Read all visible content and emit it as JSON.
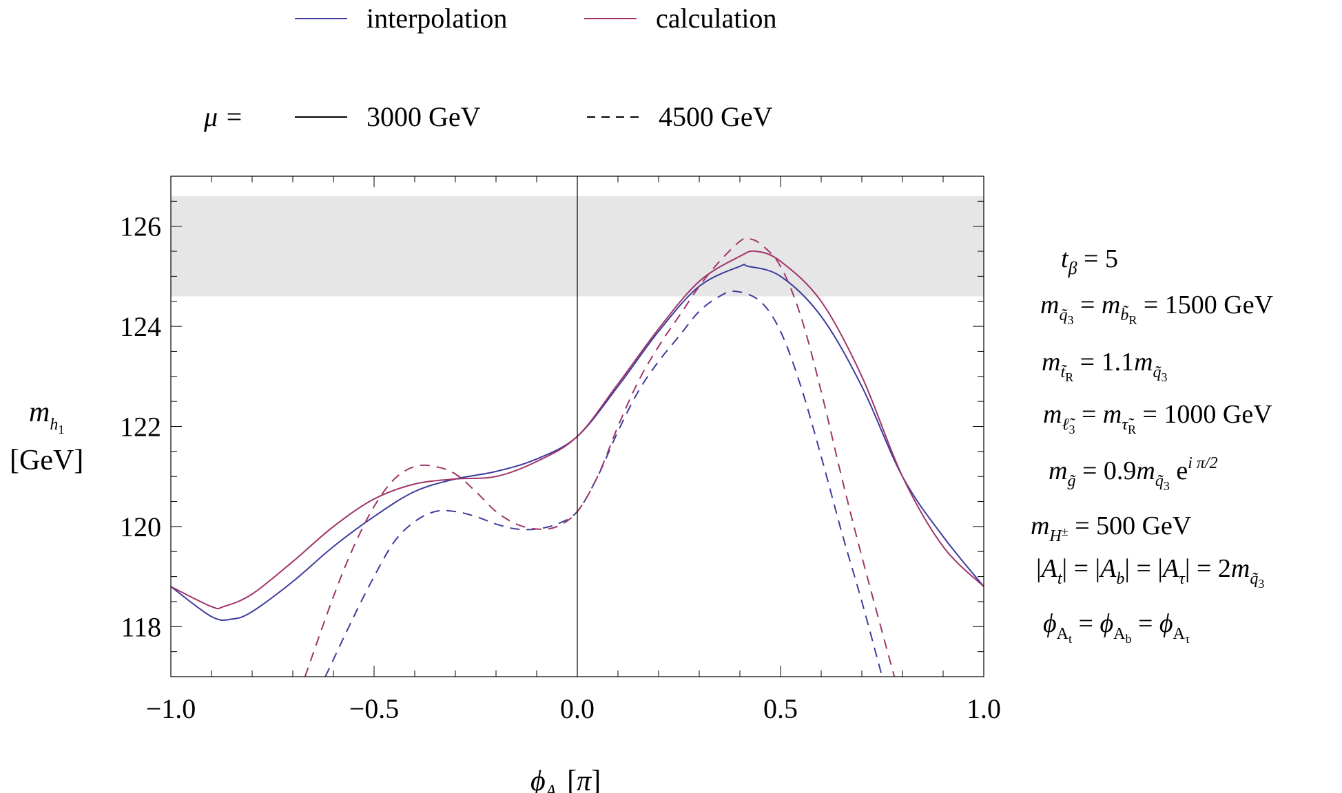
{
  "chart_data": {
    "type": "line",
    "xlabel": "ϕAₜ [π]",
    "ylabel": "mh₁ [GeV]",
    "xlim": [
      -1.0,
      1.0
    ],
    "ylim": [
      117,
      127
    ],
    "x_ticks": [
      "−1.0",
      "−0.5",
      "0.0",
      "0.5",
      "1.0"
    ],
    "y_ticks": [
      "118",
      "120",
      "122",
      "124",
      "126"
    ],
    "y_tick_values": [
      118,
      120,
      122,
      124,
      126
    ],
    "x_tick_values": [
      -1.0,
      -0.5,
      0.0,
      0.5,
      1.0
    ],
    "band": {
      "y_min": 124.6,
      "y_max": 126.6,
      "color": "#e6e6e6"
    },
    "legend_colors": [
      {
        "label": "interpolation",
        "color": "#3b3b9e"
      },
      {
        "label": "calculation",
        "color": "#a0336a"
      }
    ],
    "legend_styles": {
      "prefix": "μ =",
      "items": [
        {
          "label": "3000 GeV",
          "dash": "solid"
        },
        {
          "label": "4500 GeV",
          "dash": "dashed"
        }
      ]
    },
    "series": [
      {
        "color": "#3b3b9e",
        "dash": "solid",
        "x": [
          -1.0,
          -0.9,
          -0.85,
          -0.8,
          -0.7,
          -0.6,
          -0.5,
          -0.4,
          -0.3,
          -0.2,
          -0.1,
          0.0,
          0.1,
          0.2,
          0.3,
          0.4,
          0.42,
          0.5,
          0.6,
          0.7,
          0.8,
          0.9,
          1.0
        ],
        "y": [
          118.8,
          118.2,
          118.15,
          118.3,
          118.9,
          119.6,
          120.2,
          120.7,
          120.95,
          121.1,
          121.35,
          121.8,
          122.8,
          123.9,
          124.8,
          125.2,
          125.2,
          125.0,
          124.2,
          122.8,
          121.0,
          119.8,
          118.8
        ]
      },
      {
        "color": "#a0336a",
        "dash": "solid",
        "x": [
          -1.0,
          -0.9,
          -0.87,
          -0.8,
          -0.7,
          -0.6,
          -0.5,
          -0.4,
          -0.3,
          -0.2,
          -0.1,
          0.0,
          0.1,
          0.2,
          0.3,
          0.4,
          0.44,
          0.5,
          0.6,
          0.7,
          0.8,
          0.9,
          1.0
        ],
        "y": [
          118.8,
          118.4,
          118.4,
          118.65,
          119.3,
          120.0,
          120.55,
          120.85,
          120.95,
          121.0,
          121.3,
          121.8,
          122.85,
          123.95,
          124.9,
          125.4,
          125.5,
          125.3,
          124.5,
          123.0,
          121.0,
          119.6,
          118.8
        ]
      },
      {
        "color": "#3b3b9e",
        "dash": "dashed",
        "x": [
          -0.62,
          -0.55,
          -0.5,
          -0.45,
          -0.4,
          -0.35,
          -0.3,
          -0.25,
          -0.2,
          -0.15,
          -0.1,
          -0.05,
          0.0,
          0.05,
          0.1,
          0.15,
          0.2,
          0.25,
          0.3,
          0.35,
          0.39,
          0.45,
          0.5,
          0.55,
          0.6,
          0.65,
          0.7,
          0.75
        ],
        "y": [
          117.0,
          118.2,
          119.0,
          119.7,
          120.1,
          120.3,
          120.3,
          120.2,
          120.05,
          119.95,
          119.95,
          120.05,
          120.3,
          121.0,
          121.9,
          122.7,
          123.3,
          123.8,
          124.3,
          124.6,
          124.7,
          124.5,
          123.9,
          122.8,
          121.4,
          119.9,
          118.5,
          117.0
        ]
      },
      {
        "color": "#a0336a",
        "dash": "dashed",
        "x": [
          -0.67,
          -0.6,
          -0.55,
          -0.5,
          -0.45,
          -0.4,
          -0.35,
          -0.3,
          -0.25,
          -0.2,
          -0.15,
          -0.1,
          -0.05,
          0.0,
          0.05,
          0.1,
          0.15,
          0.2,
          0.25,
          0.3,
          0.35,
          0.4,
          0.42,
          0.45,
          0.5,
          0.55,
          0.6,
          0.65,
          0.7,
          0.78
        ],
        "y": [
          117.0,
          118.6,
          119.6,
          120.4,
          120.95,
          121.2,
          121.2,
          121.05,
          120.7,
          120.3,
          120.05,
          119.95,
          120.0,
          120.3,
          121.0,
          122.0,
          122.9,
          123.6,
          124.2,
          124.8,
          125.3,
          125.7,
          125.75,
          125.65,
          125.2,
          124.2,
          122.7,
          121.0,
          119.4,
          117.0
        ]
      }
    ]
  },
  "params": [
    {
      "main": "t",
      "sub": "β",
      "rest": " = 5"
    },
    {
      "main": "m",
      "sub": "q̃₃",
      "mid": " = m",
      "sub2": "b̃R",
      "rest": " = 1500 GeV"
    },
    {
      "main": "m",
      "sub": "t̃R",
      "mid": " = 1.1m",
      "sub2": "q̃₃",
      "rest": ""
    },
    {
      "main": "m",
      "sub": "ℓ̃₃",
      "mid": " = m",
      "sub2": "τ̃R",
      "rest": " = 1000 GeV"
    },
    {
      "main": "m",
      "sub": "g̃",
      "mid": " = 0.9m",
      "sub2": "q̃₃",
      "rest": " e",
      "sup": "i π/2"
    },
    {
      "main": "m",
      "sub": "H±",
      "rest": " = 500 GeV"
    },
    {
      "main": "|A",
      "sub": "t",
      "mid": "| = |A",
      "sub2": "b",
      "mid2": "| = |A",
      "sub3": "τ",
      "rest": "| = 2m",
      "sub4": "q̃₃"
    },
    {
      "main": "ϕ",
      "sub": "At",
      "mid": " = ϕ",
      "sub2": "Ab",
      "mid2": " = ϕ",
      "sub3": "Aτ",
      "rest": ""
    }
  ]
}
